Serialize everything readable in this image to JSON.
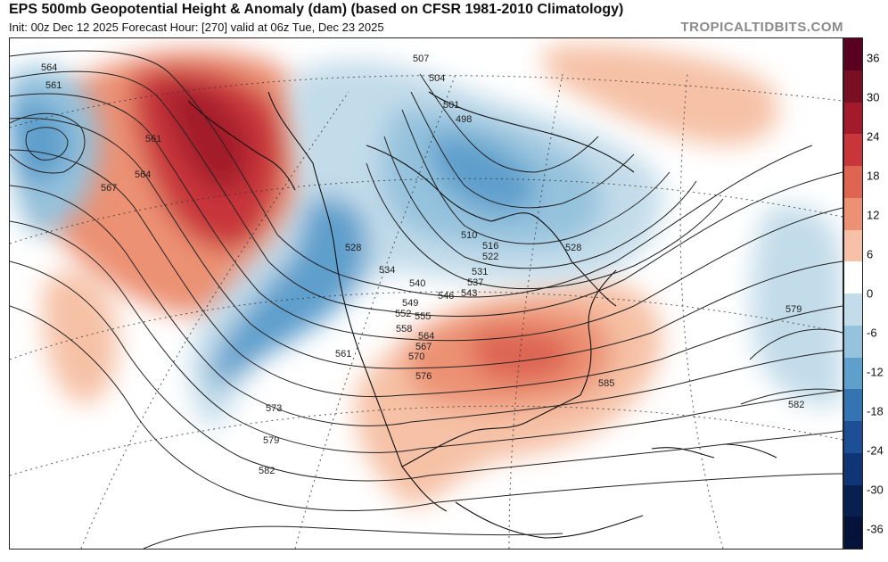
{
  "title": "EPS 500mb Geopotential Height & Anomaly (dam) (based on CFSR 1981-2010 Climatology)",
  "subtitle": "Init: 00z Dec 12 2025   Forecast Hour: [270]   valid at 06z Tue, Dec 23 2025",
  "brand": "TROPICALTIDBITS.COM",
  "colorbar": {
    "labels": [
      "36",
      "30",
      "24",
      "18",
      "12",
      "6",
      "0",
      "-6",
      "-12",
      "-18",
      "-24",
      "-30",
      "-36"
    ],
    "colors": [
      "#5a0020",
      "#7a0f24",
      "#a31b2a",
      "#c8363a",
      "#dd6552",
      "#ec9173",
      "#f6c1a6",
      "#ffffff",
      "#c3dcea",
      "#95c2dd",
      "#5f9fcc",
      "#3574b3",
      "#1c4f96",
      "#0f3577",
      "#08204f",
      "#05123a"
    ]
  },
  "map": {
    "contour_labels": [
      "564",
      "561",
      "561",
      "564",
      "567",
      "507",
      "504",
      "501",
      "498",
      "510",
      "516",
      "522",
      "528",
      "531",
      "537",
      "543",
      "528",
      "534",
      "540",
      "546",
      "549",
      "552",
      "555",
      "558",
      "564",
      "567",
      "570",
      "576",
      "561",
      "573",
      "579",
      "582",
      "585",
      "579",
      "582"
    ]
  }
}
